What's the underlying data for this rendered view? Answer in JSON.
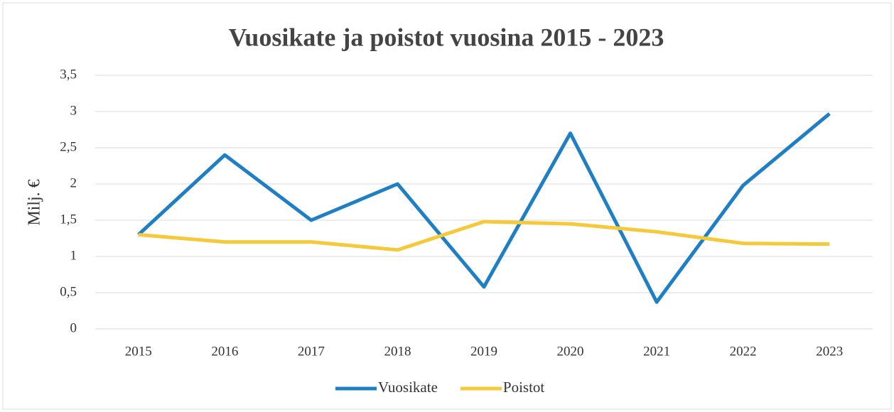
{
  "chart_data": {
    "type": "line",
    "title": "Vuosikate ja poistot vuosina 2015 - 2023",
    "y_label": "Milj. €",
    "categories": [
      "2015",
      "2016",
      "2017",
      "2018",
      "2019",
      "2020",
      "2021",
      "2022",
      "2023"
    ],
    "series": [
      {
        "name": "Vuosikate",
        "color": "#1f7fc4",
        "values": [
          1.3,
          2.4,
          1.5,
          2.0,
          0.58,
          2.7,
          0.37,
          1.98,
          2.97
        ]
      },
      {
        "name": "Poistot",
        "color": "#f5c93a",
        "values": [
          1.3,
          1.2,
          1.2,
          1.09,
          1.48,
          1.45,
          1.34,
          1.18,
          1.17
        ]
      }
    ],
    "ylim": [
      0,
      3.5
    ],
    "yticks": [
      0,
      {
        "value": 0.5,
        "label": "0,5"
      },
      1,
      {
        "value": 1.5,
        "label": "1,5"
      },
      2,
      {
        "value": 2.5,
        "label": "2,5"
      },
      3,
      {
        "value": 3.5,
        "label": "3,5"
      }
    ],
    "grid": true,
    "legend": "bottom"
  }
}
